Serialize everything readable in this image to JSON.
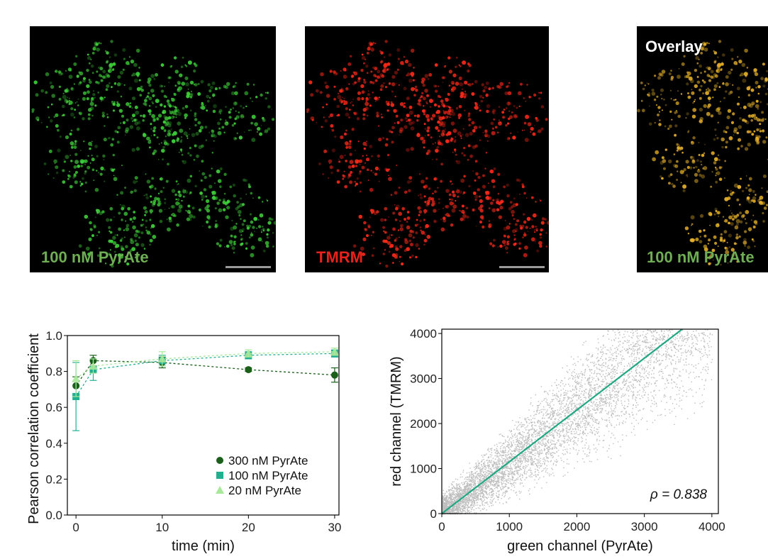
{
  "images": [
    {
      "label": "100 nM PyrAte",
      "label_color": "#6fae55",
      "channel": "green",
      "fluor_color": "#3fd23a",
      "scale_bar": true
    },
    {
      "label": "TMRM",
      "label_color": "#e8221b",
      "channel": "red",
      "fluor_color": "#ff2a1a",
      "scale_bar": true
    },
    {
      "top_label": "Overlay",
      "top_label_color": "#ffffff",
      "label": "100 nM PyrAte",
      "label_color": "#6fae55",
      "channel": "overlay",
      "fluor_color": "#e8b22a",
      "scale_bar": false
    }
  ],
  "chart_data": [
    {
      "type": "line",
      "xlabel": "time (min)",
      "ylabel": "Pearson correlation coefficient",
      "xlim": [
        -1,
        30.5
      ],
      "ylim": [
        0.0,
        1.0
      ],
      "xticks": [
        "0",
        "10",
        "20",
        "30"
      ],
      "yticks": [
        "0.0",
        "0.2",
        "0.4",
        "0.6",
        "0.8",
        "1.0"
      ],
      "grid": false,
      "legend_position": "bottom-right",
      "series": [
        {
          "name": "300 nM PyrAte",
          "marker": "circle",
          "color": "#1a5f1a",
          "x": [
            0,
            2,
            10,
            20,
            30
          ],
          "y": [
            0.72,
            0.86,
            0.85,
            0.81,
            0.78
          ],
          "err": [
            0.05,
            0.03,
            0.03,
            0.01,
            0.04
          ]
        },
        {
          "name": "100 nM PyrAte",
          "marker": "square",
          "color": "#20b090",
          "x": [
            0,
            2,
            10,
            20,
            30
          ],
          "y": [
            0.66,
            0.81,
            0.86,
            0.89,
            0.9
          ],
          "err": [
            0.19,
            0.06,
            0.03,
            0.02,
            0.02
          ]
        },
        {
          "name": "20 nM PyrAte",
          "marker": "triangle",
          "color": "#a8e89a",
          "x": [
            0,
            2,
            10,
            20,
            30
          ],
          "y": [
            0.76,
            0.83,
            0.87,
            0.9,
            0.91
          ],
          "err": [
            0.1,
            0.04,
            0.04,
            0.02,
            0.02
          ]
        }
      ]
    },
    {
      "type": "scatter",
      "xlabel": "green channel (PyrAte)",
      "ylabel": "red channel (TMRM)",
      "xlim": [
        0,
        4096
      ],
      "ylim": [
        0,
        4096
      ],
      "xticks": [
        "0",
        "1000",
        "2000",
        "3000",
        "4000"
      ],
      "yticks": [
        "0",
        "1000",
        "2000",
        "3000",
        "4000"
      ],
      "point_color": "#bdbdbd",
      "fit_line": {
        "color": "#1fa882",
        "x": [
          0,
          3560
        ],
        "y": [
          0,
          4096
        ]
      },
      "annotation": "ρ = 0.838",
      "grid": false
    }
  ]
}
